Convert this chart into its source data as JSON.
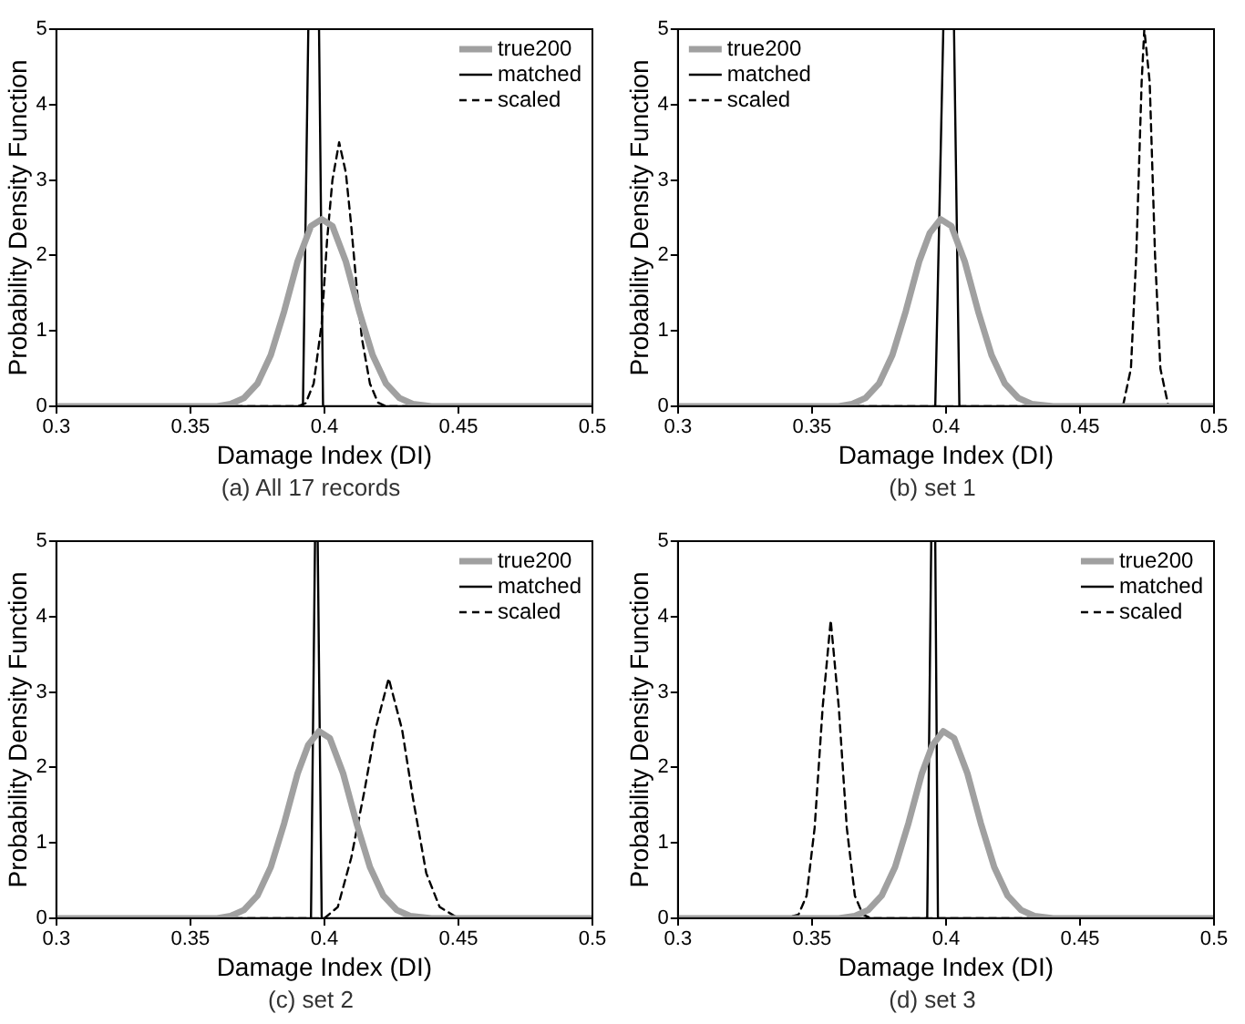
{
  "chart_data": [
    {
      "type": "line",
      "title": "(a)  All  17  records",
      "xlabel": "Damage Index (DI)",
      "ylabel": "Probability Density Function",
      "xlim": [
        0.3,
        0.5
      ],
      "ylim": [
        0,
        5
      ],
      "xticks": [
        0.3,
        0.35,
        0.4,
        0.45,
        0.5
      ],
      "yticks": [
        0,
        1,
        2,
        3,
        4,
        5
      ],
      "grid": false,
      "legend": "top right",
      "marker": "none",
      "series": [
        {
          "name": "true200",
          "color": "#a0a0a0",
          "line_style": "solid",
          "x": [
            0.3,
            0.36,
            0.365,
            0.37,
            0.375,
            0.38,
            0.385,
            0.39,
            0.395,
            0.399,
            0.403,
            0.408,
            0.413,
            0.418,
            0.423,
            0.428,
            0.433,
            0.44,
            0.5
          ],
          "values": [
            0,
            0,
            0.03,
            0.11,
            0.3,
            0.68,
            1.26,
            1.92,
            2.39,
            2.48,
            2.39,
            1.92,
            1.26,
            0.68,
            0.3,
            0.11,
            0.03,
            0,
            0
          ]
        },
        {
          "name": "matched",
          "color": "#000000",
          "line_style": "solid",
          "x": [
            0.3,
            0.392,
            0.394,
            0.396,
            0.398,
            0.3995,
            0.5
          ],
          "values": [
            0,
            0,
            5,
            null,
            5,
            0,
            0
          ]
        },
        {
          "name": "scaled",
          "color": "#000000",
          "line_style": "dashed",
          "x": [
            0.3,
            0.39,
            0.393,
            0.396,
            0.399,
            0.401,
            0.403,
            0.4055,
            0.408,
            0.41,
            0.412,
            0.414,
            0.417,
            0.42,
            0.423,
            0.5
          ],
          "values": [
            0,
            0,
            0.04,
            0.3,
            1.1,
            2.2,
            3,
            3.5,
            3.1,
            2.4,
            1.6,
            0.9,
            0.3,
            0.05,
            0,
            0
          ]
        }
      ]
    },
    {
      "type": "line",
      "title": "(b)  set  1",
      "xlabel": "Damage Index (DI)",
      "ylabel": "Probability Density Function",
      "xlim": [
        0.3,
        0.5
      ],
      "ylim": [
        0,
        5
      ],
      "xticks": [
        0.3,
        0.35,
        0.4,
        0.45,
        0.5
      ],
      "yticks": [
        0,
        1,
        2,
        3,
        4,
        5
      ],
      "grid": false,
      "legend": "top left",
      "marker": "none",
      "series": [
        {
          "name": "true200",
          "color": "#a0a0a0",
          "line_style": "solid",
          "x": [
            0.3,
            0.36,
            0.365,
            0.37,
            0.375,
            0.38,
            0.385,
            0.39,
            0.394,
            0.398,
            0.402,
            0.407,
            0.412,
            0.417,
            0.422,
            0.427,
            0.432,
            0.44,
            0.5
          ],
          "values": [
            0,
            0,
            0.03,
            0.11,
            0.3,
            0.68,
            1.26,
            1.92,
            2.3,
            2.48,
            2.39,
            1.92,
            1.26,
            0.68,
            0.3,
            0.11,
            0.03,
            0,
            0
          ]
        },
        {
          "name": "matched",
          "color": "#000000",
          "line_style": "solid",
          "x": [
            0.3,
            0.396,
            0.399,
            0.401,
            0.403,
            0.405,
            0.5
          ],
          "values": [
            0,
            0,
            5,
            null,
            5,
            0,
            0
          ]
        },
        {
          "name": "scaled",
          "color": "#000000",
          "line_style": "dashed",
          "x": [
            0.3,
            0.466,
            0.469,
            0.471,
            0.473,
            0.474,
            0.476,
            0.478,
            0.48,
            0.483,
            0.5
          ],
          "values": [
            0,
            0,
            0.5,
            2,
            4.3,
            5,
            4.3,
            2,
            0.5,
            0,
            0
          ]
        }
      ]
    },
    {
      "type": "line",
      "title": "(c)  set  2",
      "xlabel": "Damage Index (DI)",
      "ylabel": "Probability Density Function",
      "xlim": [
        0.3,
        0.5
      ],
      "ylim": [
        0,
        5
      ],
      "xticks": [
        0.3,
        0.35,
        0.4,
        0.45,
        0.5
      ],
      "yticks": [
        0,
        1,
        2,
        3,
        4,
        5
      ],
      "grid": false,
      "legend": "top right",
      "marker": "none",
      "series": [
        {
          "name": "true200",
          "color": "#a0a0a0",
          "line_style": "solid",
          "x": [
            0.3,
            0.36,
            0.365,
            0.37,
            0.375,
            0.38,
            0.385,
            0.39,
            0.394,
            0.398,
            0.402,
            0.407,
            0.412,
            0.417,
            0.422,
            0.427,
            0.432,
            0.44,
            0.5
          ],
          "values": [
            0,
            0,
            0.03,
            0.11,
            0.3,
            0.68,
            1.26,
            1.92,
            2.3,
            2.48,
            2.39,
            1.92,
            1.26,
            0.68,
            0.3,
            0.11,
            0.03,
            0,
            0
          ]
        },
        {
          "name": "matched",
          "color": "#000000",
          "line_style": "solid",
          "x": [
            0.3,
            0.395,
            0.3965,
            0.397,
            0.3975,
            0.399,
            0.5
          ],
          "values": [
            0,
            0,
            5,
            null,
            5,
            0,
            0
          ]
        },
        {
          "name": "scaled",
          "color": "#000000",
          "line_style": "dashed",
          "x": [
            0.3,
            0.4,
            0.405,
            0.41,
            0.415,
            0.419,
            0.424,
            0.429,
            0.433,
            0.438,
            0.443,
            0.45,
            0.5
          ],
          "values": [
            0,
            0,
            0.15,
            0.8,
            1.7,
            2.5,
            3.18,
            2.5,
            1.6,
            0.6,
            0.15,
            0,
            0
          ]
        }
      ]
    },
    {
      "type": "line",
      "title": "(d)  set  3",
      "xlabel": "Damage Index (DI)",
      "ylabel": "Probability Density Function",
      "xlim": [
        0.3,
        0.5
      ],
      "ylim": [
        0,
        5
      ],
      "xticks": [
        0.3,
        0.35,
        0.4,
        0.45,
        0.5
      ],
      "yticks": [
        0,
        1,
        2,
        3,
        4,
        5
      ],
      "grid": false,
      "legend": "top right",
      "marker": "none",
      "series": [
        {
          "name": "true200",
          "color": "#a0a0a0",
          "line_style": "solid",
          "x": [
            0.3,
            0.36,
            0.366,
            0.371,
            0.376,
            0.381,
            0.386,
            0.391,
            0.395,
            0.399,
            0.403,
            0.408,
            0.413,
            0.418,
            0.423,
            0.428,
            0.433,
            0.44,
            0.5
          ],
          "values": [
            0,
            0,
            0.03,
            0.11,
            0.3,
            0.68,
            1.26,
            1.92,
            2.3,
            2.48,
            2.39,
            1.92,
            1.26,
            0.68,
            0.3,
            0.11,
            0.03,
            0,
            0
          ]
        },
        {
          "name": "matched",
          "color": "#000000",
          "line_style": "solid",
          "x": [
            0.3,
            0.393,
            0.3945,
            0.395,
            0.396,
            0.397,
            0.5
          ],
          "values": [
            0,
            0,
            5,
            null,
            5,
            0,
            0
          ]
        },
        {
          "name": "scaled",
          "color": "#000000",
          "line_style": "dashed",
          "x": [
            0.3,
            0.34,
            0.345,
            0.348,
            0.351,
            0.354,
            0.357,
            0.36,
            0.363,
            0.366,
            0.369,
            0.372,
            0.5
          ],
          "values": [
            0,
            0,
            0.05,
            0.3,
            1.2,
            2.8,
            3.95,
            2.8,
            1.2,
            0.3,
            0.05,
            0,
            0
          ]
        }
      ]
    }
  ]
}
